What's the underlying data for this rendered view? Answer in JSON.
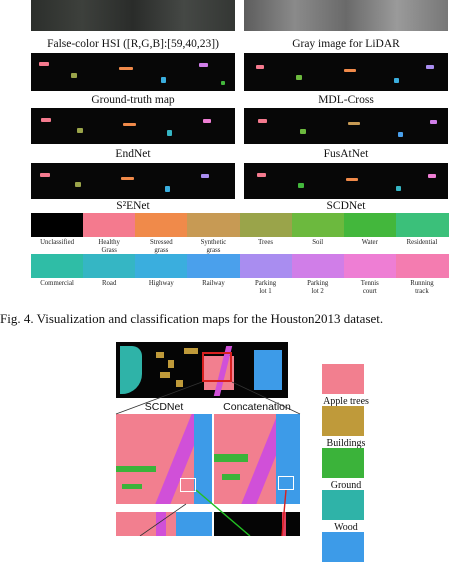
{
  "fig4": {
    "panel_captions": [
      [
        "False-color HSI ([R,G,B]:[59,40,23])",
        "Gray image for LiDAR"
      ],
      [
        "Ground-truth map",
        "MDL-Cross"
      ],
      [
        "EndNet",
        "FusAtNet"
      ],
      [
        "S²ENet",
        "SCDNet"
      ]
    ],
    "legend_row1": [
      {
        "label": "Unclassified",
        "color": "#000000"
      },
      {
        "label": "Healthy\nGrass",
        "color": "#f47a8e"
      },
      {
        "label": "Stressed\ngrass",
        "color": "#f08a4a"
      },
      {
        "label": "Synthetic\ngrass",
        "color": "#c79a54"
      },
      {
        "label": "Trees",
        "color": "#9aa44a"
      },
      {
        "label": "Soil",
        "color": "#6cb93e"
      },
      {
        "label": "Water",
        "color": "#43b73c"
      },
      {
        "label": "Residential",
        "color": "#3bc07a"
      }
    ],
    "legend_row2": [
      {
        "label": "Commercial",
        "color": "#2fbda6"
      },
      {
        "label": "Road",
        "color": "#35b6c4"
      },
      {
        "label": "Highway",
        "color": "#3aaede"
      },
      {
        "label": "Railway",
        "color": "#4aa0ec"
      },
      {
        "label": "Parking\nlot 1",
        "color": "#a98df0"
      },
      {
        "label": "Parking\nlot 2",
        "color": "#d07ee8"
      },
      {
        "label": "Tennis\ncourt",
        "color": "#ee7ed4"
      },
      {
        "label": "Running\ntrack",
        "color": "#f47cb0"
      }
    ],
    "caption": "Fig. 4.   Visualization and classification maps for the Houston2013 dataset."
  },
  "fig5": {
    "zoom_labels": [
      "SCDNet",
      "Concatenation"
    ],
    "legend": [
      {
        "label": "Apple trees",
        "color": "#f27f8f"
      },
      {
        "label": "Buildings",
        "color": "#bf9a3a"
      },
      {
        "label": "Ground",
        "color": "#3bb33a"
      },
      {
        "label": "Wood",
        "color": "#2fb3a8"
      },
      {
        "label": "",
        "color": "#3d9be8"
      }
    ]
  }
}
